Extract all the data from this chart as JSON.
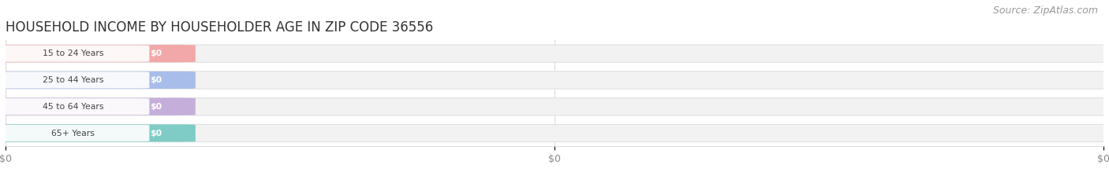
{
  "title": "HOUSEHOLD INCOME BY HOUSEHOLDER AGE IN ZIP CODE 36556",
  "source": "Source: ZipAtlas.com",
  "categories": [
    "15 to 24 Years",
    "25 to 44 Years",
    "45 to 64 Years",
    "65+ Years"
  ],
  "values": [
    0,
    0,
    0,
    0
  ],
  "bar_colors": [
    "#f2a0a0",
    "#a0b8e8",
    "#c0a8d8",
    "#72c8c0"
  ],
  "background_color": "#ffffff",
  "bar_bg_color": "#f2f2f2",
  "bar_border_color": "#e0e0e0",
  "xlim": [
    0,
    1
  ],
  "xtick_positions": [
    0.0,
    0.5,
    1.0
  ],
  "xtick_labels": [
    "$0",
    "$0",
    "$0"
  ],
  "title_fontsize": 12,
  "source_fontsize": 9,
  "bar_height": 0.62,
  "figsize": [
    14.06,
    2.33
  ]
}
